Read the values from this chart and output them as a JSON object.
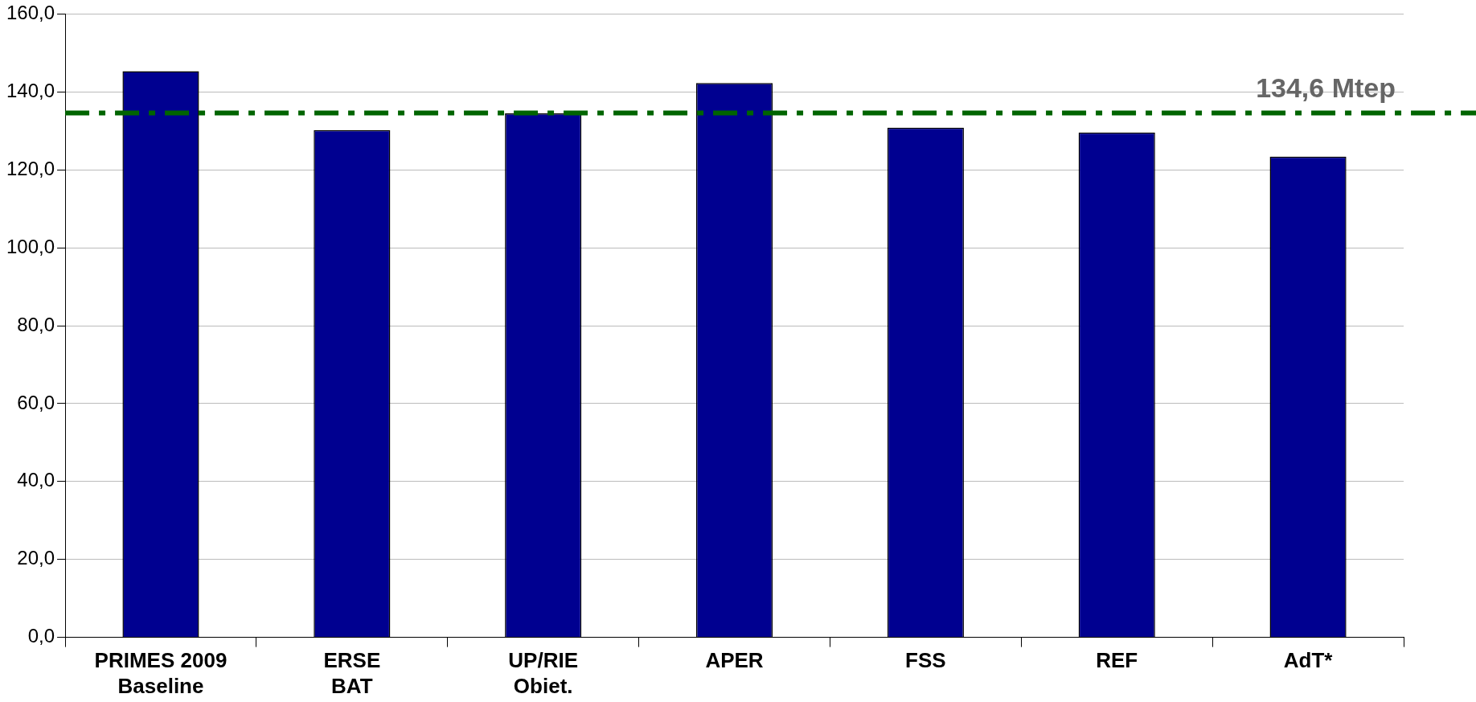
{
  "chart_data": {
    "type": "bar",
    "categories": [
      "PRIMES 2009\nBaseline",
      "ERSE\nBAT",
      "UP/RIE\nObiet.",
      "APER",
      "FSS",
      "REF",
      "AdT*"
    ],
    "values": [
      145.3,
      130.2,
      134.5,
      142.3,
      130.8,
      129.6,
      123.4
    ],
    "color": "#000090",
    "ylim": [
      0,
      160
    ],
    "yticks": [
      {
        "value": 0,
        "label": "0,0"
      },
      {
        "value": 20,
        "label": "20,0"
      },
      {
        "value": 40,
        "label": "40,0"
      },
      {
        "value": 60,
        "label": "60,0"
      },
      {
        "value": 80,
        "label": "80,0"
      },
      {
        "value": 100,
        "label": "100,0"
      },
      {
        "value": 120,
        "label": "120,0"
      },
      {
        "value": 140,
        "label": "140,0"
      },
      {
        "value": 160,
        "label": "160,0"
      }
    ],
    "grid": "y",
    "legend": false,
    "ref_lines": [
      {
        "axis": "y",
        "value": 134.6,
        "label": "134,6 Mtep",
        "color": "#006400",
        "line_style": "dashdot"
      }
    ]
  }
}
